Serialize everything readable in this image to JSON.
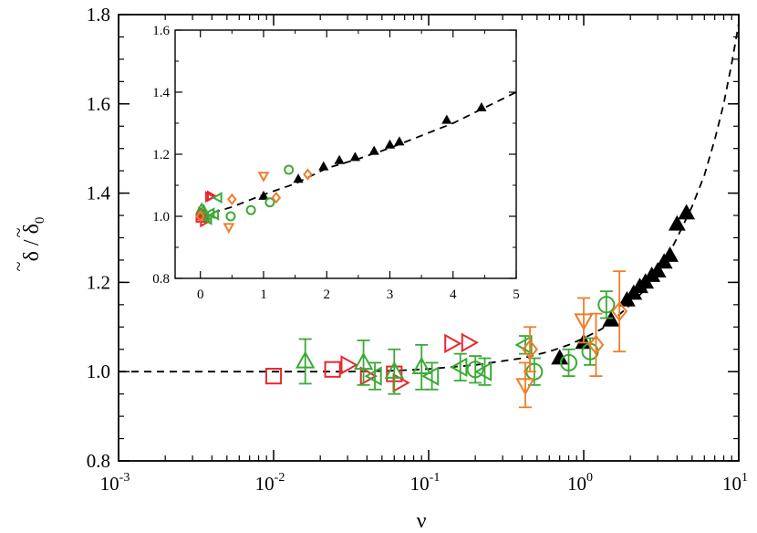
{
  "chart_data": [
    {
      "id": "main",
      "type": "scatter",
      "xscale": "log",
      "xlim": [
        0.001,
        10
      ],
      "ylim": [
        0.8,
        1.8
      ],
      "xlabel": "ν",
      "ylabel": "δ̃ / δ̃₀",
      "x_ticks": [
        {
          "label": "10",
          "exp": "-3",
          "value": 0.001
        },
        {
          "label": "10",
          "exp": "-2",
          "value": 0.01
        },
        {
          "label": "10",
          "exp": "-1",
          "value": 0.1
        },
        {
          "label": "10",
          "exp": "0",
          "value": 1
        },
        {
          "label": "10",
          "exp": "1",
          "value": 10
        }
      ],
      "y_ticks": [
        "0.8",
        "1.0",
        "1.2",
        "1.4",
        "1.6",
        "1.8"
      ],
      "colors": {
        "red": "#e8282f",
        "green": "#3aaa35",
        "orange": "#ee7d2b",
        "black": "#000000"
      },
      "fit_curve": {
        "name": "theory",
        "style": "dashed",
        "points": [
          [
            0.001,
            1.0
          ],
          [
            0.01,
            1.0
          ],
          [
            0.03,
            1.0
          ],
          [
            0.06,
            1.002
          ],
          [
            0.1,
            1.006
          ],
          [
            0.2,
            1.015
          ],
          [
            0.4,
            1.03
          ],
          [
            0.6,
            1.045
          ],
          [
            0.8,
            1.06
          ],
          [
            1.0,
            1.075
          ],
          [
            1.3,
            1.095
          ],
          [
            1.6,
            1.12
          ],
          [
            2.0,
            1.15
          ],
          [
            2.5,
            1.185
          ],
          [
            3.0,
            1.22
          ],
          [
            3.5,
            1.26
          ],
          [
            4.0,
            1.3
          ],
          [
            5.0,
            1.37
          ],
          [
            6.0,
            1.44
          ],
          [
            7.0,
            1.52
          ],
          [
            8.0,
            1.6
          ],
          [
            9.0,
            1.69
          ],
          [
            10.0,
            1.78
          ]
        ]
      },
      "series": [
        {
          "name": "black-filled-triangles",
          "marker": "triangle-up",
          "filled": true,
          "color": "black",
          "size": "medium",
          "points": [
            [
              0.7,
              1.03
            ],
            [
              1.0,
              1.065
            ],
            [
              1.5,
              1.115
            ],
            [
              1.9,
              1.16
            ],
            [
              2.1,
              1.175
            ],
            [
              2.3,
              1.19
            ],
            [
              2.5,
              1.2
            ],
            [
              2.75,
              1.215
            ],
            [
              3.0,
              1.225
            ],
            [
              3.3,
              1.245
            ],
            [
              3.6,
              1.26
            ],
            [
              4.0,
              1.33
            ],
            [
              4.6,
              1.355
            ]
          ]
        },
        {
          "name": "red-squares",
          "marker": "square",
          "filled": false,
          "color": "red",
          "size": "large",
          "points": [
            [
              0.01,
              0.99
            ],
            [
              0.024,
              1.005
            ],
            [
              0.06,
              0.995
            ]
          ]
        },
        {
          "name": "red-right-triangles",
          "marker": "triangle-right",
          "filled": false,
          "color": "red",
          "size": "large",
          "points": [
            [
              0.03,
              1.015
            ],
            [
              0.04,
              0.99
            ],
            [
              0.065,
              0.975
            ],
            [
              0.14,
              1.063
            ],
            [
              0.18,
              1.065
            ]
          ]
        },
        {
          "name": "green-triangles",
          "marker": "triangle-up",
          "filled": false,
          "color": "green",
          "size": "large",
          "points": [
            [
              0.016,
              1.023,
              0.05
            ],
            [
              0.038,
              1.02,
              0.05
            ],
            [
              0.06,
              1.0,
              0.05
            ],
            [
              0.09,
              1.01,
              0.05
            ]
          ]
        },
        {
          "name": "green-left-triangles",
          "marker": "triangle-left",
          "filled": false,
          "color": "green",
          "size": "large",
          "points": [
            [
              0.045,
              0.99,
              0.03
            ],
            [
              0.105,
              0.99,
              0.03
            ],
            [
              0.16,
              1.01,
              0.03
            ],
            [
              0.23,
              1.0,
              0.03
            ],
            [
              0.42,
              1.06,
              0.02
            ]
          ]
        },
        {
          "name": "green-circles",
          "marker": "circle",
          "filled": false,
          "color": "green",
          "size": "large",
          "points": [
            [
              0.2,
              1.005,
              0.03
            ],
            [
              0.48,
              1.0,
              0.03
            ],
            [
              0.8,
              1.02,
              0.03
            ],
            [
              1.1,
              1.045,
              0.03
            ],
            [
              1.4,
              1.15,
              0.03
            ]
          ]
        },
        {
          "name": "orange-down-triangles",
          "marker": "triangle-down",
          "filled": false,
          "color": "orange",
          "size": "large",
          "points": [
            [
              0.42,
              0.97,
              0.05
            ],
            [
              1.0,
              1.115,
              0.05
            ]
          ]
        },
        {
          "name": "orange-diamonds",
          "marker": "diamond",
          "filled": false,
          "color": "orange",
          "size": "large",
          "points": [
            [
              0.45,
              1.05,
              0.05
            ],
            [
              1.2,
              1.06,
              0.07
            ],
            [
              1.7,
              1.135,
              0.09
            ]
          ]
        }
      ]
    },
    {
      "id": "inset",
      "type": "scatter",
      "xscale": "linear",
      "xlim": [
        -0.4,
        5
      ],
      "ylim": [
        0.8,
        1.6
      ],
      "x_ticks": [
        "0",
        "1",
        "2",
        "3",
        "4",
        "5"
      ],
      "y_ticks": [
        "0.8",
        "1.0",
        "1.2",
        "1.4",
        "1.6"
      ],
      "fit_curve": {
        "name": "theory",
        "style": "dashed",
        "points": [
          [
            0,
            1.0
          ],
          [
            0.5,
            1.03
          ],
          [
            1.0,
            1.07
          ],
          [
            1.5,
            1.105
          ],
          [
            2.0,
            1.155
          ],
          [
            2.5,
            1.185
          ],
          [
            3.0,
            1.22
          ],
          [
            3.5,
            1.26
          ],
          [
            4.0,
            1.3
          ],
          [
            5.0,
            1.4
          ]
        ]
      },
      "series": [
        {
          "name": "black-filled-triangles",
          "marker": "triangle-up",
          "filled": true,
          "color": "black",
          "size": "small",
          "points": [
            [
              1.0,
              1.065
            ],
            [
              1.55,
              1.12
            ],
            [
              1.95,
              1.16
            ],
            [
              2.2,
              1.18
            ],
            [
              2.45,
              1.19
            ],
            [
              2.75,
              1.21
            ],
            [
              3.0,
              1.23
            ],
            [
              3.15,
              1.24
            ],
            [
              3.9,
              1.31
            ],
            [
              4.45,
              1.35
            ]
          ]
        },
        {
          "name": "red-squares",
          "marker": "square",
          "filled": false,
          "color": "red",
          "size": "small",
          "points": [
            [
              0.0,
              0.995
            ],
            [
              0.02,
              1.003
            ],
            [
              0.05,
              0.995
            ]
          ]
        },
        {
          "name": "red-right-triangles",
          "marker": "triangle-right",
          "filled": false,
          "color": "red",
          "size": "small",
          "points": [
            [
              0.03,
              1.013
            ],
            [
              0.06,
              0.983
            ],
            [
              0.14,
              1.063
            ],
            [
              0.17,
              1.065
            ]
          ]
        },
        {
          "name": "green-triangles",
          "marker": "triangle-up",
          "filled": false,
          "color": "green",
          "size": "small",
          "points": [
            [
              0.02,
              1.025
            ],
            [
              0.05,
              1.02
            ],
            [
              0.08,
              1.0
            ]
          ]
        },
        {
          "name": "green-left-triangles",
          "marker": "triangle-left",
          "filled": false,
          "color": "green",
          "size": "small",
          "points": [
            [
              0.12,
              0.99
            ],
            [
              0.16,
              1.01
            ],
            [
              0.23,
              1.005
            ],
            [
              0.28,
              1.06
            ]
          ]
        },
        {
          "name": "green-circles",
          "marker": "circle",
          "filled": false,
          "color": "green",
          "size": "small",
          "points": [
            [
              0.48,
              1.0
            ],
            [
              0.8,
              1.02
            ],
            [
              1.1,
              1.045
            ],
            [
              1.4,
              1.15
            ]
          ]
        },
        {
          "name": "orange-down-triangles",
          "marker": "triangle-down",
          "filled": false,
          "color": "orange",
          "size": "small",
          "points": [
            [
              0.45,
              0.965
            ],
            [
              1.0,
              1.13
            ]
          ]
        },
        {
          "name": "orange-diamonds",
          "marker": "diamond",
          "filled": false,
          "color": "orange",
          "size": "small",
          "points": [
            [
              0.0,
              1.0
            ],
            [
              0.5,
              1.055
            ],
            [
              1.2,
              1.06
            ],
            [
              1.7,
              1.135
            ]
          ]
        }
      ]
    }
  ]
}
